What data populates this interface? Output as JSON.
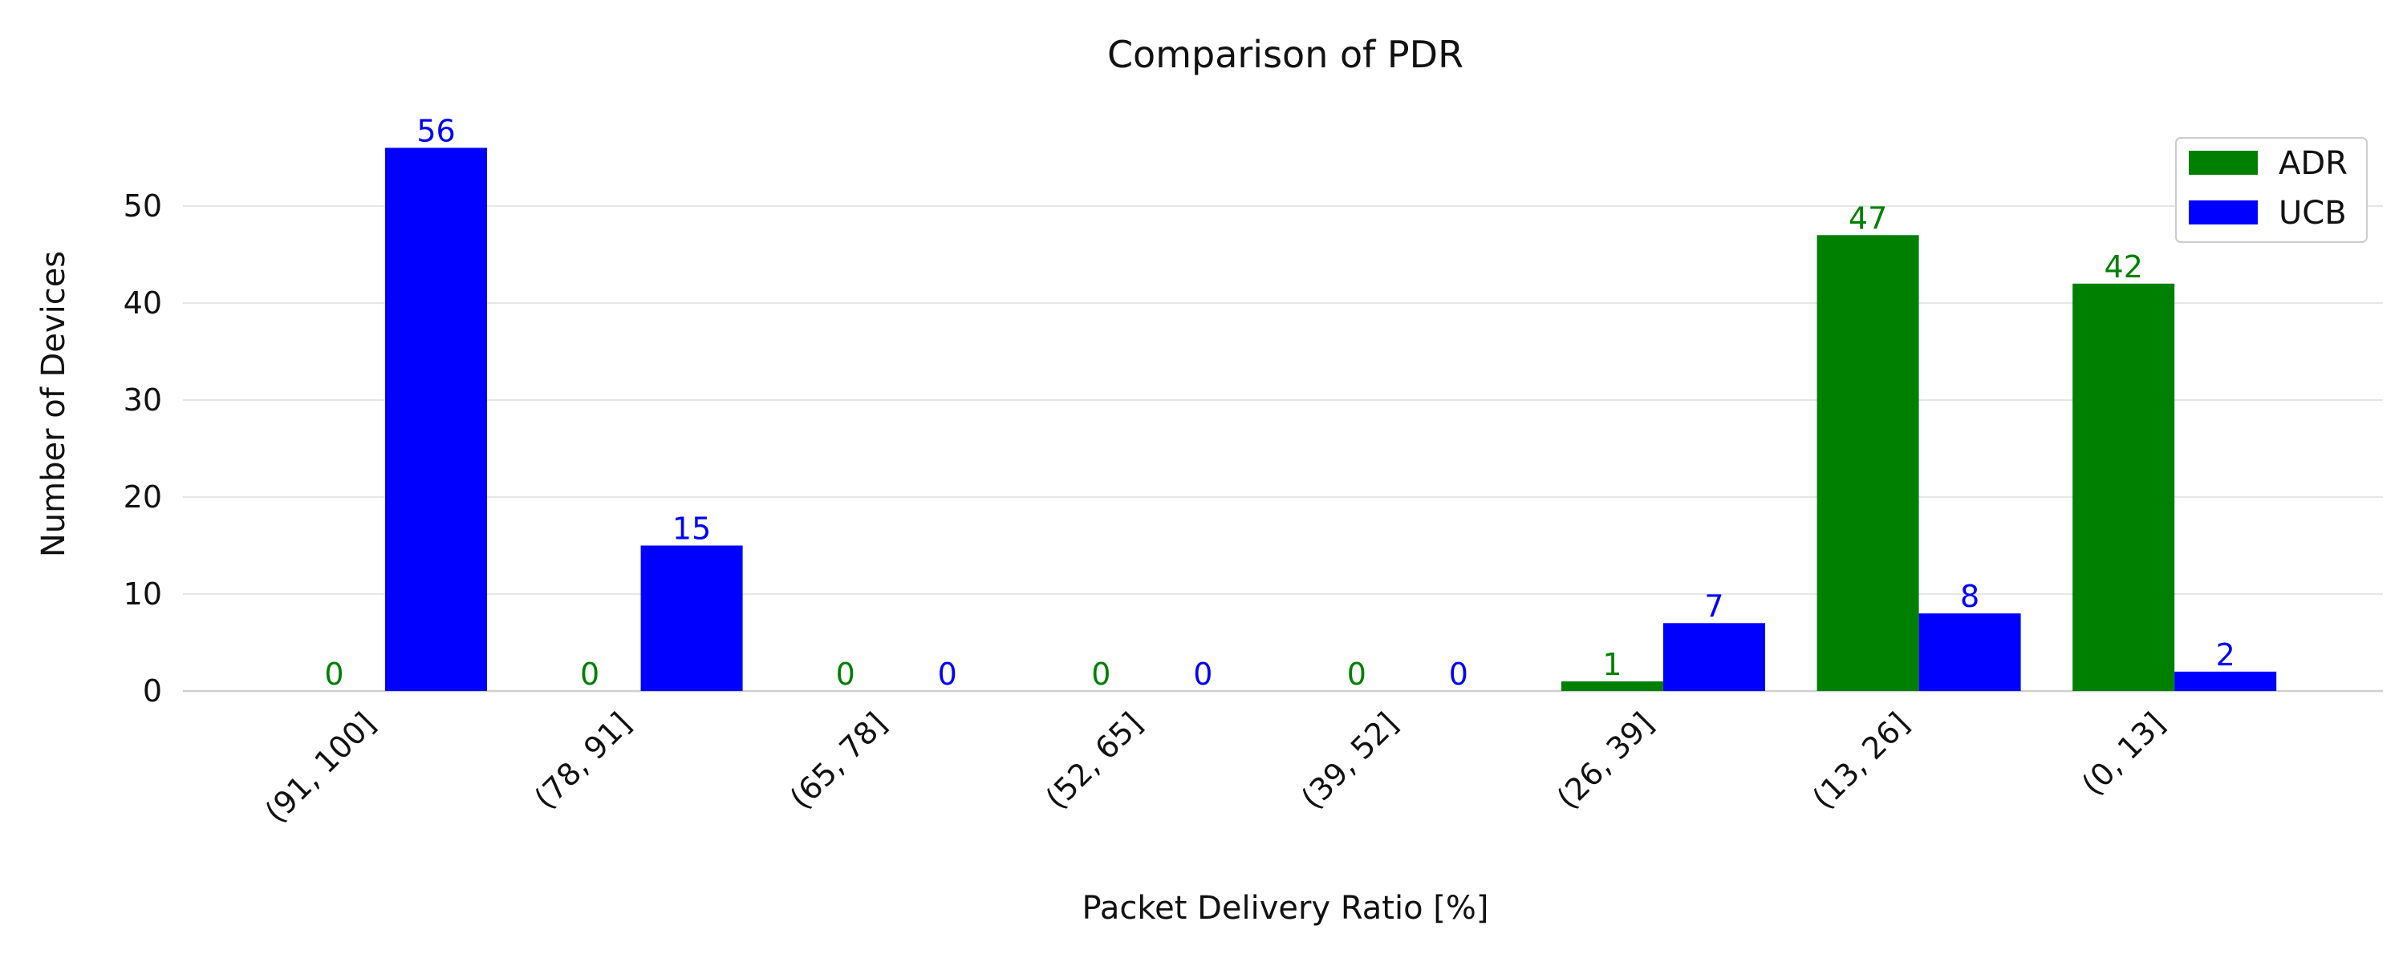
{
  "chart_data": {
    "type": "bar",
    "title": "Comparison of PDR",
    "xlabel": "Packet Delivery Ratio [%]",
    "ylabel": "Number of Devices",
    "categories": [
      "(91, 100]",
      "(78, 91]",
      "(65, 78]",
      "(52, 65]",
      "(39, 52]",
      "(26, 39]",
      "(13, 26]",
      "(0, 13]"
    ],
    "series": [
      {
        "name": "ADR",
        "color": "#008000",
        "values": [
          0,
          0,
          0,
          0,
          0,
          1,
          47,
          42
        ]
      },
      {
        "name": "UCB",
        "color": "#0000ff",
        "values": [
          56,
          15,
          0,
          0,
          0,
          7,
          8,
          2
        ]
      }
    ],
    "ylim": [
      0,
      58
    ],
    "yticks": [
      0,
      10,
      20,
      30,
      40,
      50
    ],
    "grid": "horizontal",
    "legend_position": "top-right",
    "data_labels": true
  }
}
